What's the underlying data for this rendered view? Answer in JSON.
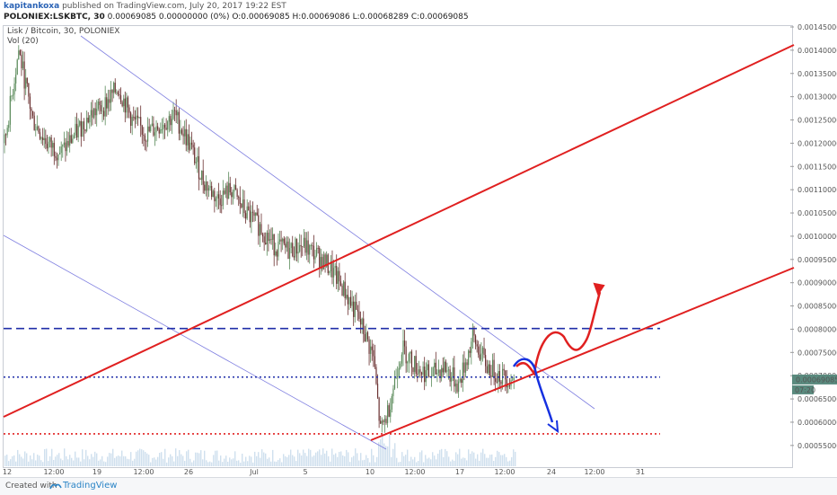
{
  "header": {
    "author": "kapitankoxa",
    "published": "published on TradingView.com, July 20, 2017 19:22 EST",
    "symbol": "POLONIEX:LSKBTC, 30",
    "ohlc": "0.00069085 0.00000000 (0%) O:0.00069085 H:0.00069086 L:0.00068289 C:0.00069085"
  },
  "legend": {
    "title": "Lisk / Bitcoin, 30, POLONIEX",
    "indicator": "Vol (20)"
  },
  "footer": {
    "created_with": "Created with",
    "brand": "TradingView"
  },
  "colors": {
    "up": "#5a8a5a",
    "down": "#6a3030",
    "trend_red": "#e02020",
    "dash_blue": "#1f2ea8",
    "dot_red": "#e02020",
    "channel": "#7f7fe0",
    "arrow_red": "#e02020",
    "arrow_blue": "#1530e0",
    "price_badge": "#5a8a7e",
    "volume": "#cfe0ee"
  },
  "chart_data": {
    "type": "candlestick",
    "y_ticks": [
      "0.00145000",
      "0.00140000",
      "0.00135000",
      "0.00130000",
      "0.00125000",
      "0.00120000",
      "0.00115000",
      "0.00110000",
      "0.00105000",
      "0.00100000",
      "0.00095000",
      "0.00090000",
      "0.00085000",
      "0.00080000",
      "0.00075000",
      "0.00070000",
      "0.00065000",
      "0.00060000",
      "0.00055000"
    ],
    "x_ticks": [
      "12",
      "12:00",
      "19",
      "12:00",
      "26",
      "Jul",
      "5",
      "10",
      "12:00",
      "17",
      "12:00",
      "24",
      "12:00",
      "31"
    ],
    "last_price": "0.00069085",
    "countdown": "07:20",
    "price_path": [
      [
        0,
        0.0012
      ],
      [
        1,
        0.0014
      ],
      [
        2,
        0.00125
      ],
      [
        3,
        0.0012
      ],
      [
        4,
        0.00118
      ],
      [
        5,
        0.00122
      ],
      [
        6,
        0.00126
      ],
      [
        7,
        0.00128
      ],
      [
        8,
        0.00132
      ],
      [
        9,
        0.00125
      ],
      [
        10,
        0.00122
      ],
      [
        11,
        0.00124
      ],
      [
        12,
        0.00126
      ],
      [
        13,
        0.0012
      ],
      [
        14,
        0.00112
      ],
      [
        15,
        0.00108
      ],
      [
        16,
        0.0011
      ],
      [
        17,
        0.00105
      ],
      [
        18,
        0.00102
      ],
      [
        19,
        0.00098
      ],
      [
        20,
        0.00097
      ],
      [
        21,
        0.00098
      ],
      [
        22,
        0.00096
      ],
      [
        23,
        0.00093
      ],
      [
        24,
        0.00088
      ],
      [
        25,
        0.00082
      ],
      [
        26,
        0.00074
      ],
      [
        26.5,
        0.00058
      ],
      [
        27,
        0.00062
      ],
      [
        28,
        0.00076
      ],
      [
        29,
        0.00072
      ],
      [
        30,
        0.0007
      ],
      [
        31,
        0.00072
      ],
      [
        32,
        0.00068
      ],
      [
        33,
        0.00078
      ],
      [
        34,
        0.00072
      ],
      [
        35,
        0.0007
      ],
      [
        36,
        0.00069
      ]
    ],
    "levels": {
      "resistance_dashed": 0.0008015,
      "current_dotted": 0.000697,
      "support_dotted": 0.000575
    },
    "trendlines": [
      {
        "from": [
          "12",
          0.00061
        ],
        "to": [
          "31+",
          0.001405
        ],
        "color": "red"
      },
      {
        "from": [
          "10",
          0.000564
        ],
        "to": [
          "31+",
          0.00092
        ],
        "color": "red"
      }
    ],
    "scenarios": [
      {
        "direction": "up",
        "color": "red",
        "target": 0.000885
      },
      {
        "direction": "down",
        "color": "blue",
        "target": 0.00058
      }
    ]
  }
}
